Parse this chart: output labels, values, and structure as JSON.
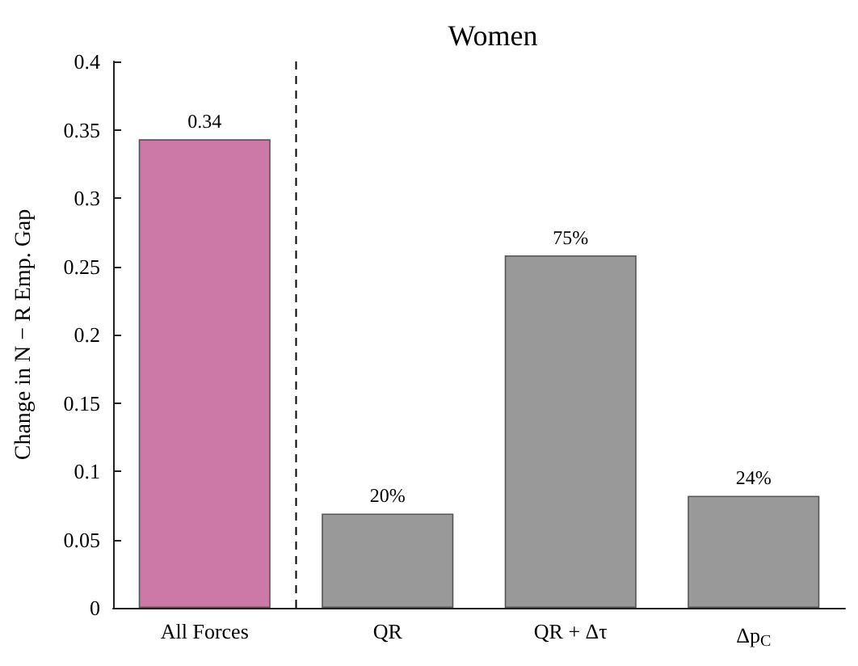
{
  "chart_data": {
    "type": "bar",
    "title": "Women",
    "ylabel": "Change in N − R Emp. Gap",
    "categories": [
      "All Forces",
      "QR",
      "QR + Δτ",
      "Δp$_{C}$"
    ],
    "values": [
      0.343,
      0.069,
      0.258,
      0.082
    ],
    "colors": [
      "#cc79a7",
      "#999999",
      "#999999",
      "#999999"
    ],
    "value_labels": [
      "0.34",
      null,
      null,
      null
    ],
    "annotations": [
      {
        "text": "20%",
        "x": "QR",
        "y": 0.069
      },
      {
        "text": "75%",
        "x": "QR + Δτ",
        "y": 0.258
      },
      {
        "text": "24%",
        "x": "Δp$_{C}$",
        "y": 0.082
      }
    ],
    "ylim": [
      0,
      0.4
    ],
    "yticks": [
      0,
      0.05,
      0.1,
      0.15,
      0.2,
      0.25,
      0.3,
      0.35,
      0.4
    ],
    "grid": false
  }
}
